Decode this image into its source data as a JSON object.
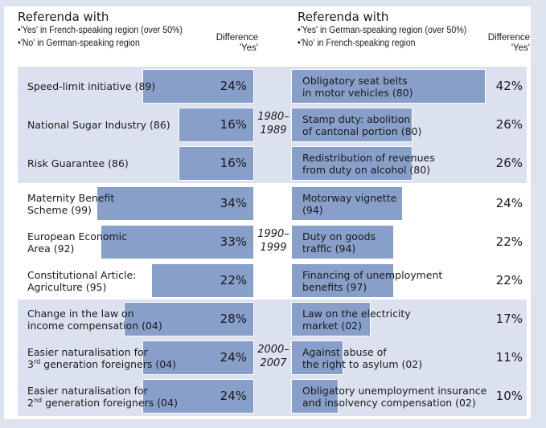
{
  "header": {
    "left": {
      "title": "Referenda with",
      "bullets": [
        "'Yes' in French-speaking region (over 50%)",
        "'No' in German-speaking region"
      ],
      "difference_label": [
        "Difference",
        "'Yes'"
      ]
    },
    "right": {
      "title": "Referenda with",
      "bullets": [
        "'Yes' in German-speaking region (over 50%)",
        "'No' in French-speaking region"
      ],
      "difference_label": [
        "Difference",
        "'Yes'"
      ]
    }
  },
  "colors": {
    "bar": "#879fc9",
    "band_shade": "#dbe1ee",
    "page_bg": "#dde3ef"
  },
  "chart_data": {
    "type": "bar",
    "title": "Referenda with diverging results between French- and German-speaking regions",
    "xlabel": "Difference 'Yes' (%)",
    "periods": [
      {
        "label": "1980–1989",
        "label_lines": [
          "1980–",
          "1989"
        ],
        "left": [
          {
            "lines": [
              "Speed-limit initiative (89)"
            ],
            "value": 24,
            "display": "24%"
          },
          {
            "lines": [
              "National Sugar Industry (86)"
            ],
            "value": 16,
            "display": "16%"
          },
          {
            "lines": [
              "Risk Guarantee (86)"
            ],
            "value": 16,
            "display": "16%"
          }
        ],
        "right": [
          {
            "lines": [
              "Obligatory seat belts",
              "in motor vehicles (80)"
            ],
            "value": 42,
            "display": "42%"
          },
          {
            "lines": [
              "Stamp duty: abolition",
              "of cantonal portion (80)"
            ],
            "value": 26,
            "display": "26%"
          },
          {
            "lines": [
              "Redistribution of revenues",
              "from duty on alcohol (80)"
            ],
            "value": 26,
            "display": "26%"
          }
        ]
      },
      {
        "label": "1990–1999",
        "label_lines": [
          "1990–",
          "1999"
        ],
        "left": [
          {
            "lines": [
              "Maternity Benefit",
              "Scheme (99)"
            ],
            "value": 34,
            "display": "34%"
          },
          {
            "lines": [
              "European Economic",
              "Area (92)"
            ],
            "value": 33,
            "display": "33%"
          },
          {
            "lines": [
              "Constitutional Article:",
              "Agriculture (95)"
            ],
            "value": 22,
            "display": "22%"
          }
        ],
        "right": [
          {
            "lines": [
              "Motorway vignette",
              "(94)"
            ],
            "value": 24,
            "display": "24%"
          },
          {
            "lines": [
              "Duty on goods",
              "traffic (94)"
            ],
            "value": 22,
            "display": "22%"
          },
          {
            "lines": [
              "Financing of unemployment",
              "benefits (97)"
            ],
            "value": 22,
            "display": "22%"
          }
        ]
      },
      {
        "label": "2000–2007",
        "label_lines": [
          "2000–",
          "2007"
        ],
        "left": [
          {
            "lines": [
              "Change in the law on",
              "income compensation (04)"
            ],
            "value": 28,
            "display": "28%"
          },
          {
            "lines": [
              "Easier naturalisation for",
              "3|rd| generation foreigners (04)"
            ],
            "value": 24,
            "display": "24%"
          },
          {
            "lines": [
              "Easier naturalisation for",
              "2|nd| generation foreigners (04)"
            ],
            "value": 24,
            "display": "24%"
          }
        ],
        "right": [
          {
            "lines": [
              "Law on the electricity",
              "market (02)"
            ],
            "value": 17,
            "display": "17%"
          },
          {
            "lines": [
              "Against abuse of",
              "the right to asylum (02)"
            ],
            "value": 11,
            "display": "11%"
          },
          {
            "lines": [
              "Obligatory unemployment insurance",
              "and insolvency compensation (02)"
            ],
            "value": 10,
            "display": "10%"
          }
        ]
      }
    ]
  }
}
